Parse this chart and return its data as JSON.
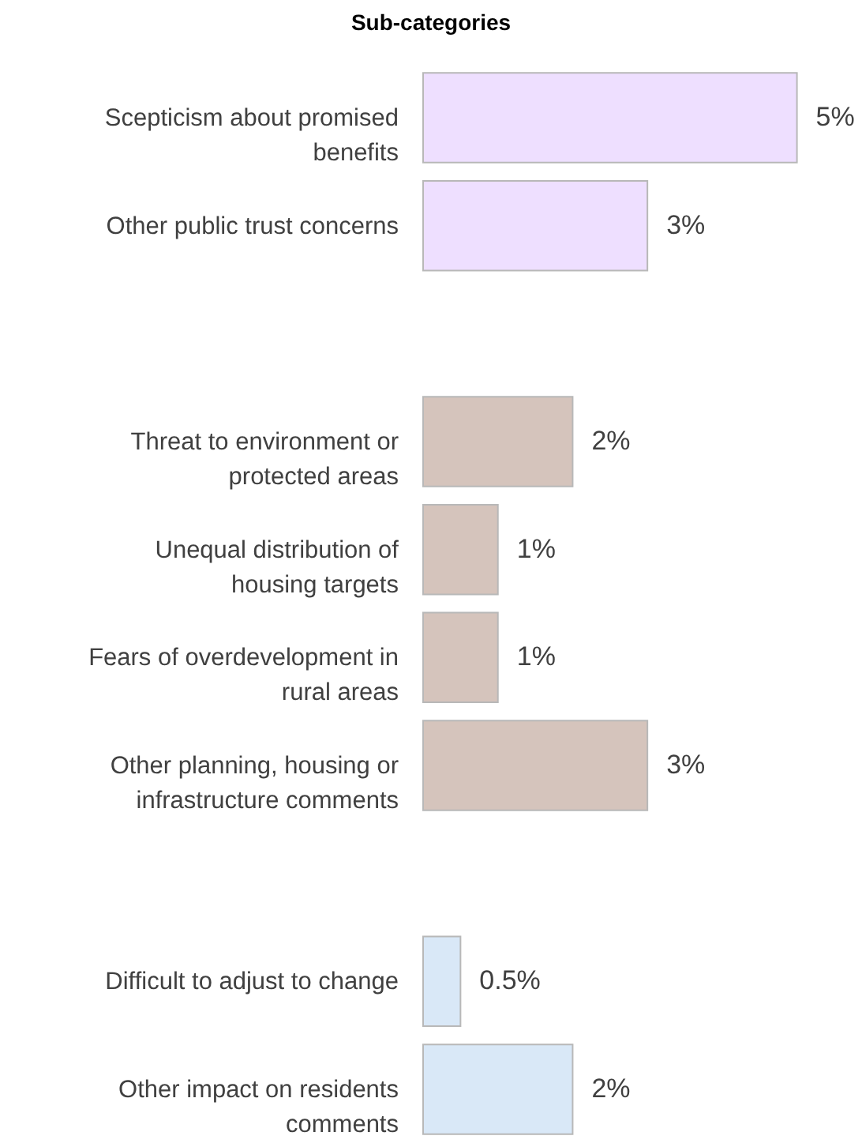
{
  "chart_data": {
    "type": "bar",
    "orientation": "horizontal",
    "title": "Sub-categories",
    "categories": [
      "Scepticism about promised benefits",
      "Other public trust concerns",
      null,
      "Threat to environment or protected areas",
      "Unequal distribution of housing targets",
      "Fears of overdevelopment in rural areas",
      "Other planning, housing or infrastructure comments",
      null,
      "Difficult to adjust to change",
      "Other impact on residents comments"
    ],
    "values": [
      5,
      3,
      null,
      2,
      1,
      1,
      3,
      null,
      0.5,
      2
    ],
    "colors": [
      "#eedfff",
      "#eedfff",
      null,
      "#d5c4bc",
      "#d5c4bc",
      "#d5c4bc",
      "#d5c4bc",
      null,
      "#d9e8f7",
      "#d9e8f7"
    ],
    "value_labels": [
      "5%",
      "3%",
      null,
      "2%",
      "1%",
      "1%",
      "3%",
      null,
      "0.5%",
      "2%"
    ],
    "xlim": [
      0,
      5.87
    ],
    "tick_labels": "y"
  }
}
